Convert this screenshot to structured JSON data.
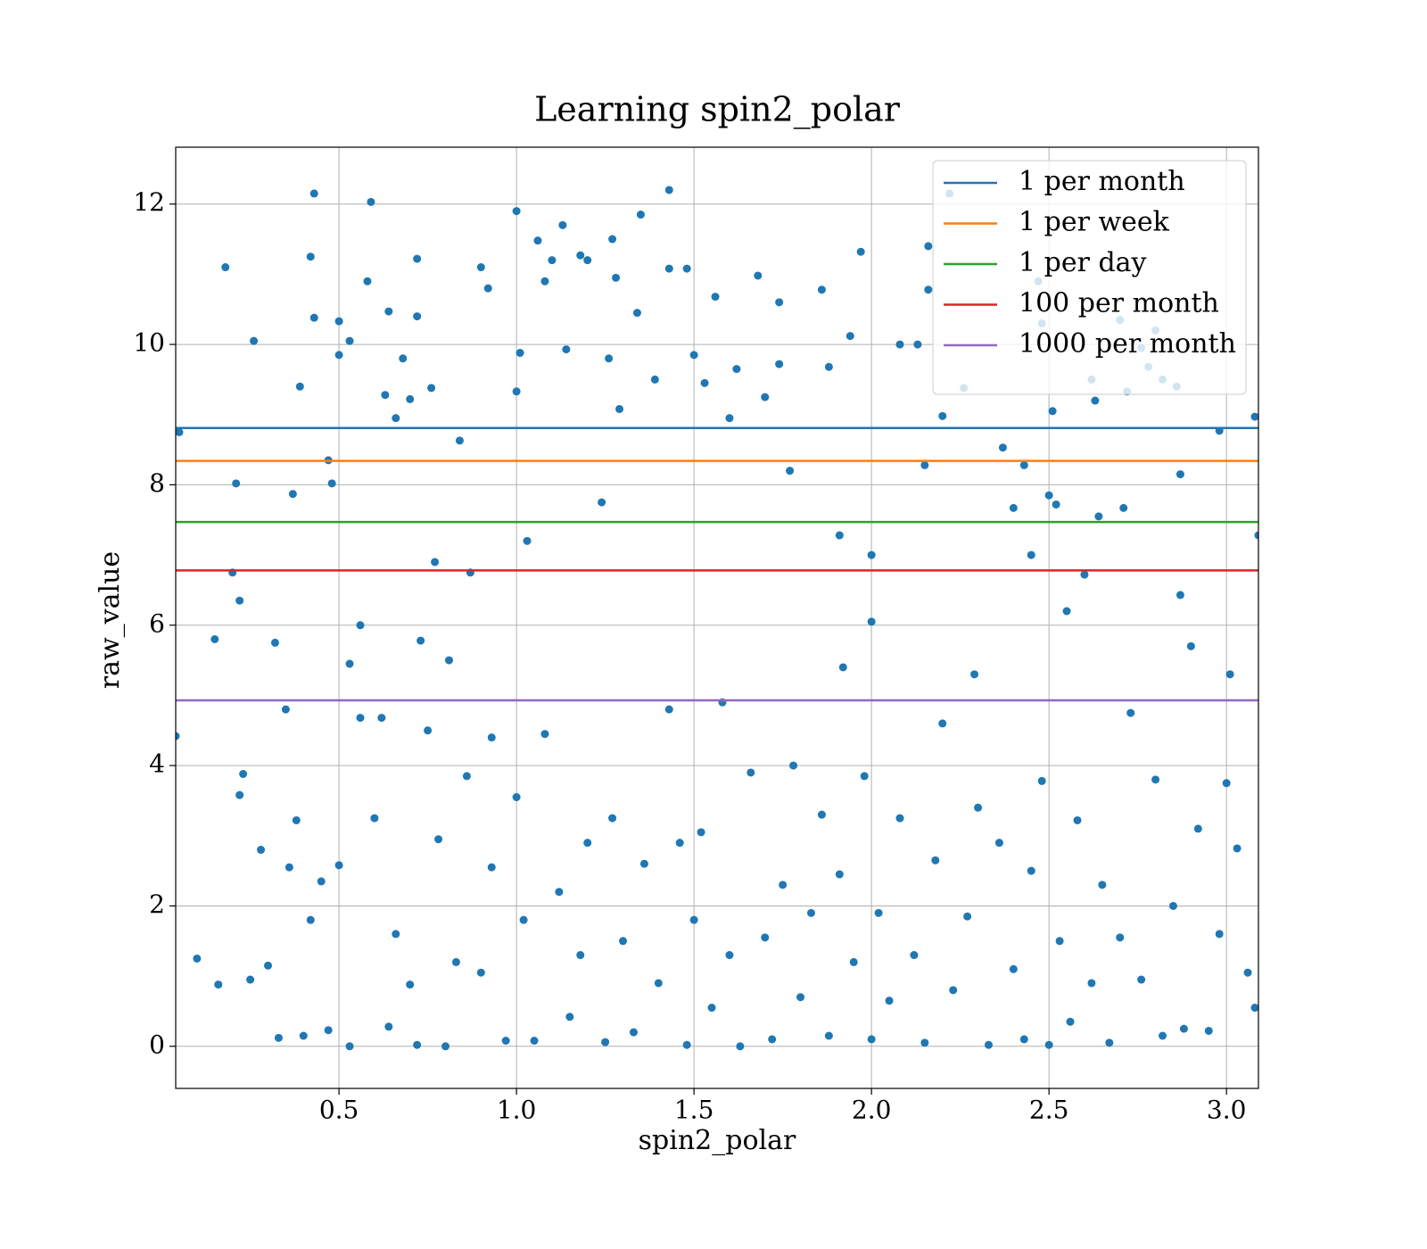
{
  "chart_data": {
    "type": "scatter",
    "title": "Learning spin2_polar",
    "x_label": "spin2_polar",
    "y_label": "raw_value",
    "color": "#1f77b4",
    "x": [
      0.05,
      0.04,
      0.15,
      0.18,
      0.2,
      0.21,
      0.22,
      0.22,
      0.26,
      0.32,
      0.35,
      0.37,
      0.39,
      0.42,
      0.43,
      0.43,
      0.47,
      0.48,
      0.5,
      0.5,
      0.53,
      0.53,
      0.56,
      0.58,
      0.59,
      0.63,
      0.64,
      0.66,
      0.68,
      0.7,
      0.72,
      0.72,
      0.73,
      0.76,
      0.77,
      0.81,
      0.84,
      0.87,
      0.9,
      0.92,
      0.93,
      1.0,
      1.0,
      1.01,
      1.03,
      1.06,
      1.08,
      1.1,
      1.13,
      1.14,
      1.18,
      1.2,
      1.24,
      1.26,
      1.27,
      1.28,
      1.29,
      1.34,
      1.35,
      1.39,
      1.43,
      1.43,
      1.48,
      1.5,
      1.53,
      1.56,
      1.6,
      1.62,
      1.68,
      1.7,
      1.74,
      1.74,
      1.77,
      1.86,
      1.88,
      1.91,
      1.92,
      1.94,
      1.97,
      2.0,
      2.0,
      2.08,
      2.13,
      2.15,
      2.16,
      2.16,
      2.2,
      2.22,
      2.26,
      2.29,
      2.37,
      2.4,
      2.43,
      2.45,
      2.47,
      2.48,
      2.5,
      2.51,
      2.52,
      2.55,
      2.6,
      2.62,
      2.63,
      2.64,
      2.7,
      2.71,
      2.72,
      2.76,
      2.78,
      2.8,
      2.82,
      2.86,
      2.87,
      2.87,
      2.9,
      2.98,
      3.01,
      3.08,
      3.09,
      0.1,
      0.16,
      0.23,
      0.25,
      0.28,
      0.3,
      0.33,
      0.36,
      0.38,
      0.4,
      0.42,
      0.45,
      0.47,
      0.5,
      0.53,
      0.56,
      0.6,
      0.62,
      0.64,
      0.66,
      0.7,
      0.72,
      0.75,
      0.78,
      0.8,
      0.83,
      0.86,
      0.9,
      0.93,
      0.97,
      1.0,
      1.02,
      1.05,
      1.08,
      1.12,
      1.15,
      1.18,
      1.2,
      1.25,
      1.27,
      1.3,
      1.33,
      1.36,
      1.4,
      1.43,
      1.46,
      1.48,
      1.5,
      1.52,
      1.55,
      1.58,
      1.6,
      1.63,
      1.66,
      1.7,
      1.72,
      1.75,
      1.78,
      1.8,
      1.83,
      1.86,
      1.88,
      1.91,
      1.95,
      1.98,
      2.0,
      2.02,
      2.05,
      2.08,
      2.12,
      2.15,
      2.18,
      2.2,
      2.23,
      2.27,
      2.3,
      2.33,
      2.36,
      2.4,
      2.43,
      2.45,
      2.48,
      2.5,
      2.53,
      2.56,
      2.58,
      2.62,
      2.65,
      2.67,
      2.7,
      2.73,
      2.76,
      2.8,
      2.82,
      2.85,
      2.88,
      2.92,
      2.95,
      2.98,
      3.0,
      3.03,
      3.06,
      3.08
    ],
    "values": [
      8.75,
      4.42,
      5.8,
      11.1,
      6.75,
      8.02,
      6.35,
      3.58,
      10.05,
      5.75,
      4.8,
      7.87,
      9.4,
      11.25,
      12.15,
      10.38,
      8.35,
      8.02,
      10.33,
      9.85,
      10.05,
      5.45,
      6.0,
      10.9,
      12.03,
      9.28,
      10.47,
      8.95,
      9.8,
      9.22,
      11.22,
      10.4,
      5.78,
      9.38,
      6.9,
      5.5,
      8.63,
      6.75,
      11.1,
      10.8,
      4.4,
      11.9,
      9.33,
      9.88,
      7.2,
      11.48,
      10.9,
      11.2,
      11.7,
      9.93,
      11.27,
      11.2,
      7.75,
      9.8,
      11.5,
      10.95,
      9.08,
      10.45,
      11.85,
      9.5,
      12.2,
      11.08,
      11.08,
      9.85,
      9.45,
      10.68,
      8.95,
      9.65,
      10.98,
      9.25,
      10.6,
      9.72,
      8.2,
      10.78,
      9.68,
      7.28,
      5.4,
      10.12,
      11.32,
      7.0,
      6.05,
      10.0,
      10.0,
      8.28,
      11.4,
      10.78,
      8.98,
      12.15,
      9.38,
      5.3,
      8.53,
      7.67,
      8.28,
      7.0,
      10.9,
      10.3,
      7.85,
      9.05,
      7.72,
      6.2,
      6.72,
      9.5,
      9.2,
      7.55,
      10.35,
      7.67,
      9.33,
      9.95,
      9.68,
      10.2,
      9.5,
      9.4,
      8.15,
      6.43,
      5.7,
      8.77,
      5.3,
      8.97,
      7.28,
      1.25,
      0.88,
      3.88,
      0.95,
      2.8,
      1.15,
      0.12,
      2.55,
      3.22,
      0.15,
      1.8,
      2.35,
      0.23,
      2.58,
      0.0,
      4.68,
      3.25,
      4.68,
      0.28,
      1.6,
      0.88,
      0.02,
      4.5,
      2.95,
      0.0,
      1.2,
      3.85,
      1.05,
      2.55,
      0.08,
      3.55,
      1.8,
      0.08,
      4.45,
      2.2,
      0.42,
      1.3,
      2.9,
      0.06,
      3.25,
      1.5,
      0.2,
      2.6,
      0.9,
      4.8,
      2.9,
      0.02,
      1.8,
      3.05,
      0.55,
      4.9,
      1.3,
      0.0,
      3.9,
      1.55,
      0.1,
      2.3,
      4.0,
      0.7,
      1.9,
      3.3,
      0.15,
      2.45,
      1.2,
      3.85,
      0.1,
      1.9,
      0.65,
      3.25,
      1.3,
      0.05,
      2.65,
      4.6,
      0.8,
      1.85,
      3.4,
      0.02,
      2.9,
      1.1,
      0.1,
      2.5,
      3.78,
      0.02,
      1.5,
      0.35,
      3.22,
      0.9,
      2.3,
      0.05,
      1.55,
      4.75,
      0.95,
      3.8,
      0.15,
      2.0,
      0.25,
      3.1,
      0.22,
      1.6,
      3.75,
      2.82,
      1.05,
      0.55
    ],
    "hlines": [
      {
        "name": "1 per month",
        "color": "#1f77b4",
        "value": 8.81
      },
      {
        "name": "1 per week",
        "color": "#ff7f0e",
        "value": 8.34
      },
      {
        "name": "1 per day",
        "color": "#2ca02c",
        "value": 7.47
      },
      {
        "name": "100 per month",
        "color": "#d62728",
        "value": 6.78
      },
      {
        "name": "1000 per month",
        "color": "#9467bd",
        "value": 4.93
      }
    ],
    "xlim": [
      0.04,
      3.09
    ],
    "ylim": [
      -0.6,
      12.81
    ],
    "xticks": [
      0.5,
      {
        "value": 1,
        "label": "1.0"
      },
      1.5,
      {
        "value": 2,
        "label": "2.0"
      },
      2.5,
      {
        "value": 3,
        "label": "3.0"
      }
    ],
    "yticks": [
      0,
      2,
      4,
      6,
      8,
      10,
      12
    ],
    "grid": true,
    "legend": "upper right"
  }
}
